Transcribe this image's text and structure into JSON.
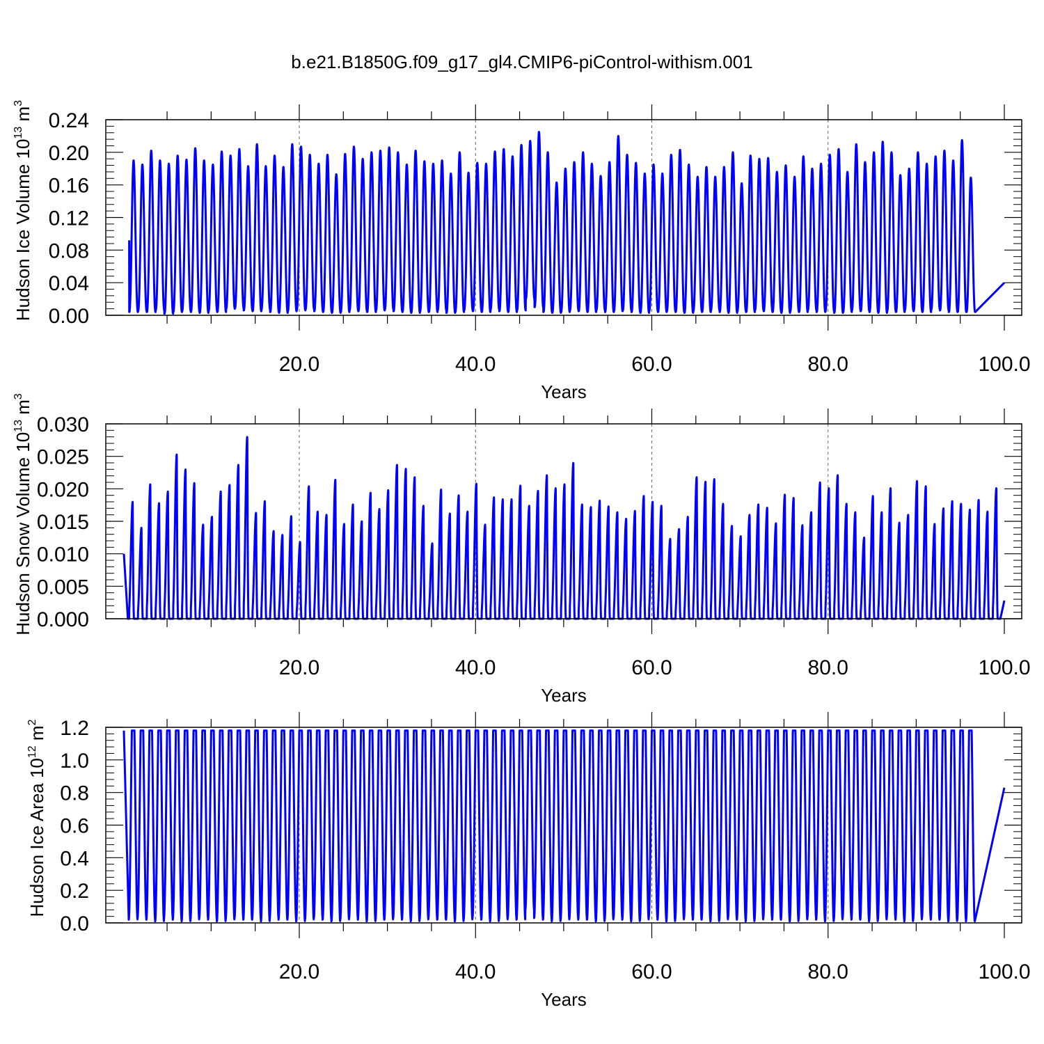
{
  "figure": {
    "title": "b.e21.B1850G.f09_g17_gl4.CMIP6-piControl-withism.001",
    "line_color": "#0000ff"
  },
  "chart_data": [
    {
      "type": "line",
      "title": "",
      "xlabel": "Years",
      "ylabel_main": "Hudson Ice Volume 10",
      "ylabel_exp": "13",
      "ylabel_unit": " m",
      "ylabel_unit_exp": "3",
      "xlim": [
        0.1,
        100.0
      ],
      "ylim": [
        0.0,
        0.24
      ],
      "xticks": [
        20.0,
        40.0,
        60.0,
        80.0,
        100.0
      ],
      "xtick_labels": [
        "20.0",
        "40.0",
        "60.0",
        "80.0",
        "100.0"
      ],
      "yticks": [
        0.0,
        0.04,
        0.08,
        0.12,
        0.16,
        0.2,
        0.24
      ],
      "ytick_labels": [
        "0.00",
        "0.04",
        "0.08",
        "0.12",
        "0.16",
        "0.20",
        "0.24"
      ],
      "grid_x": true,
      "start_value": 0.092,
      "end_value": 0.04,
      "series": [
        {
          "annual_peaks": [
            0.19,
            0.185,
            0.202,
            0.19,
            0.186,
            0.196,
            0.191,
            0.205,
            0.19,
            0.185,
            0.201,
            0.196,
            0.204,
            0.183,
            0.21,
            0.183,
            0.196,
            0.182,
            0.21,
            0.207,
            0.197,
            0.186,
            0.197,
            0.173,
            0.198,
            0.207,
            0.192,
            0.2,
            0.202,
            0.206,
            0.2,
            0.185,
            0.202,
            0.189,
            0.186,
            0.19,
            0.174,
            0.2,
            0.175,
            0.187,
            0.186,
            0.201,
            0.204,
            0.195,
            0.209,
            0.214,
            0.225,
            0.2,
            0.163,
            0.18,
            0.188,
            0.2,
            0.186,
            0.171,
            0.188,
            0.22,
            0.197,
            0.187,
            0.174,
            0.185,
            0.174,
            0.197,
            0.203,
            0.185,
            0.17,
            0.182,
            0.17,
            0.182,
            0.2,
            0.162,
            0.196,
            0.192,
            0.193,
            0.176,
            0.184,
            0.17,
            0.195,
            0.18,
            0.186,
            0.197,
            0.204,
            0.176,
            0.21,
            0.188,
            0.2,
            0.213,
            0.2,
            0.172,
            0.18,
            0.2,
            0.186,
            0.195,
            0.202,
            0.19,
            0.215,
            0.169
          ],
          "annual_minima": [
            0.004,
            0.005,
            0.004,
            0.006,
            0.002,
            0.004,
            0.005,
            0.004,
            0.003,
            0.005,
            0.004,
            0.008,
            0.009,
            0.006,
            0.005,
            0.007,
            0.004,
            0.003,
            0.005,
            0.006,
            0.007,
            0.005,
            0.004,
            0.003,
            0.004,
            0.006,
            0.005,
            0.004,
            0.006,
            0.007,
            0.005,
            0.004,
            0.003,
            0.005,
            0.004,
            0.006,
            0.003,
            0.004,
            0.006,
            0.005,
            0.004,
            0.007,
            0.005,
            0.004,
            0.006,
            0.02,
            0.01,
            0.004,
            0.003,
            0.004,
            0.006,
            0.005,
            0.004,
            0.006,
            0.004,
            0.005,
            0.006,
            0.004,
            0.003,
            0.005,
            0.004,
            0.005,
            0.004,
            0.003,
            0.005,
            0.004,
            0.006,
            0.004,
            0.003,
            0.005,
            0.004,
            0.006,
            0.005,
            0.004,
            0.003,
            0.005,
            0.004,
            0.006,
            0.004,
            0.005,
            0.003,
            0.004,
            0.006,
            0.005,
            0.004,
            0.003,
            0.005,
            0.004,
            0.006,
            0.005,
            0.004,
            0.007,
            0.006,
            0.004,
            0.004,
            0.004
          ]
        }
      ]
    },
    {
      "type": "line",
      "title": "",
      "xlabel": "Years",
      "ylabel_main": "Hudson Snow Volume 10",
      "ylabel_exp": "13",
      "ylabel_unit": " m",
      "ylabel_unit_exp": "3",
      "xlim": [
        0.1,
        100.0
      ],
      "ylim": [
        0.0,
        0.03
      ],
      "xticks": [
        20.0,
        40.0,
        60.0,
        80.0,
        100.0
      ],
      "xtick_labels": [
        "20.0",
        "40.0",
        "60.0",
        "80.0",
        "100.0"
      ],
      "yticks": [
        0.0,
        0.005,
        0.01,
        0.015,
        0.02,
        0.025,
        0.03
      ],
      "ytick_labels": [
        "0.000",
        "0.005",
        "0.010",
        "0.015",
        "0.020",
        "0.025",
        "0.030"
      ],
      "grid_x": true,
      "start_value": 0.01,
      "end_value": 0.0028,
      "series": [
        {
          "annual_peaks": [
            0.018,
            0.014,
            0.0207,
            0.0178,
            0.0196,
            0.0253,
            0.023,
            0.0209,
            0.0145,
            0.0157,
            0.0196,
            0.0206,
            0.0237,
            0.028,
            0.0163,
            0.0181,
            0.0135,
            0.0129,
            0.0158,
            0.0118,
            0.0204,
            0.0165,
            0.016,
            0.0214,
            0.0146,
            0.0176,
            0.015,
            0.0194,
            0.0169,
            0.0198,
            0.0237,
            0.0231,
            0.0218,
            0.0174,
            0.0116,
            0.0199,
            0.0162,
            0.019,
            0.0165,
            0.0208,
            0.0145,
            0.0187,
            0.0184,
            0.0184,
            0.0205,
            0.0174,
            0.0197,
            0.0221,
            0.0201,
            0.0207,
            0.024,
            0.0176,
            0.0172,
            0.0182,
            0.0173,
            0.0164,
            0.0154,
            0.0166,
            0.0189,
            0.018,
            0.0174,
            0.0123,
            0.0138,
            0.0157,
            0.0218,
            0.0211,
            0.0215,
            0.0177,
            0.0143,
            0.0127,
            0.016,
            0.0176,
            0.0171,
            0.0147,
            0.0191,
            0.0186,
            0.0144,
            0.0164,
            0.021,
            0.0201,
            0.0221,
            0.0177,
            0.0164,
            0.0125,
            0.0189,
            0.0164,
            0.0201,
            0.0148,
            0.016,
            0.0212,
            0.0204,
            0.0146,
            0.017,
            0.0181,
            0.0177,
            0.0168,
            0.0183,
            0.0165,
            0.0201
          ]
        }
      ]
    },
    {
      "type": "line",
      "title": "",
      "xlabel": "Years",
      "ylabel_main": "Hudson Ice Area 10",
      "ylabel_exp": "12",
      "ylabel_unit": " m",
      "ylabel_unit_exp": "2",
      "xlim": [
        0.1,
        100.0
      ],
      "ylim": [
        0.0,
        1.2
      ],
      "xticks": [
        20.0,
        40.0,
        60.0,
        80.0,
        100.0
      ],
      "xtick_labels": [
        "20.0",
        "40.0",
        "60.0",
        "80.0",
        "100.0"
      ],
      "yticks": [
        0.0,
        0.2,
        0.4,
        0.6,
        0.8,
        1.0,
        1.2
      ],
      "ytick_labels": [
        "0.0",
        "0.2",
        "0.4",
        "0.6",
        "0.8",
        "1.0",
        "1.2"
      ],
      "grid_x": true,
      "start_value": 1.18,
      "end_value": 0.83,
      "series": [
        {
          "annual_peak": 1.18,
          "annual_minima": [
            0.02,
            0.03,
            0.02,
            0.01,
            0.03,
            0.02,
            0.01,
            0.02,
            0.03,
            0.02,
            0.01,
            0.02,
            0.03,
            0.02,
            0.02,
            0.01,
            0.03,
            0.02,
            0.02,
            0.01,
            0.02,
            0.03,
            0.02,
            0.01,
            0.02,
            0.03,
            0.02,
            0.01,
            0.02,
            0.02,
            0.03,
            0.02,
            0.01,
            0.02,
            0.03,
            0.02,
            0.02,
            0.01,
            0.02,
            0.03,
            0.02,
            0.01,
            0.02,
            0.03,
            0.02,
            0.08,
            0.03,
            0.02,
            0.01,
            0.02,
            0.03,
            0.02,
            0.02,
            0.01,
            0.02,
            0.03,
            0.02,
            0.01,
            0.02,
            0.03,
            0.02,
            0.01,
            0.02,
            0.03,
            0.02,
            0.02,
            0.01,
            0.02,
            0.03,
            0.02,
            0.01,
            0.02,
            0.03,
            0.02,
            0.02,
            0.01,
            0.02,
            0.03,
            0.02,
            0.01,
            0.02,
            0.03,
            0.02,
            0.02,
            0.01,
            0.02,
            0.03,
            0.02,
            0.01,
            0.02,
            0.03,
            0.02,
            0.02,
            0.01,
            0.02,
            0.01
          ]
        }
      ]
    }
  ]
}
